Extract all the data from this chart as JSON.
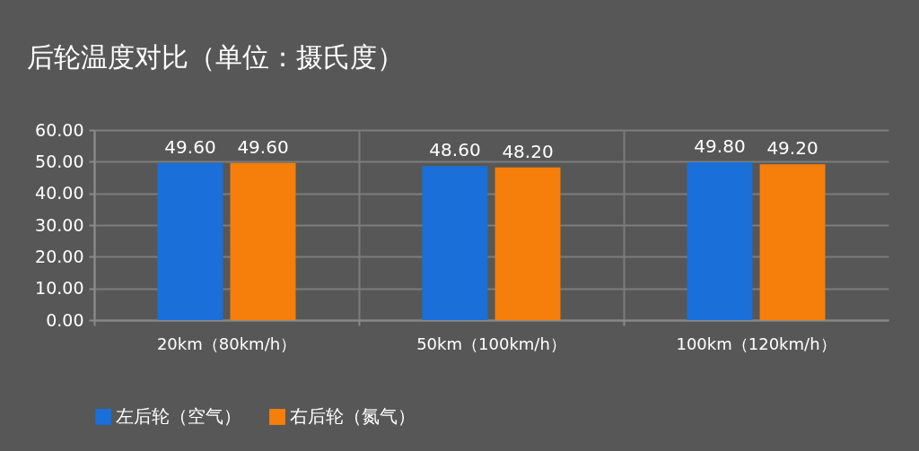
{
  "chart_data": {
    "type": "bar",
    "title": "后轮温度对比（单位：摄氏度）",
    "categories": [
      "20km（80km/h）",
      "50km（100km/h）",
      "100km（120km/h）"
    ],
    "series": [
      {
        "name": "左后轮（空气）",
        "color": "#1a6fd8",
        "values": [
          49.6,
          48.6,
          49.8
        ],
        "value_labels": [
          "49.60",
          "48.60",
          "49.80"
        ]
      },
      {
        "name": "右后轮（氮气）",
        "color": "#f57f0a",
        "values": [
          49.6,
          48.2,
          49.2
        ],
        "value_labels": [
          "49.60",
          "48.20",
          "49.20"
        ]
      }
    ],
    "ylim": [
      0,
      60
    ],
    "yticks": [
      {
        "value": 0,
        "label": "0.00"
      },
      {
        "value": 10,
        "label": "10.00"
      },
      {
        "value": 20,
        "label": "20.00"
      },
      {
        "value": 30,
        "label": "30.00"
      },
      {
        "value": 40,
        "label": "40.00"
      },
      {
        "value": 50,
        "label": "50.00"
      },
      {
        "value": 60,
        "label": "60.00"
      }
    ],
    "grid": true,
    "legend": "bottom"
  }
}
